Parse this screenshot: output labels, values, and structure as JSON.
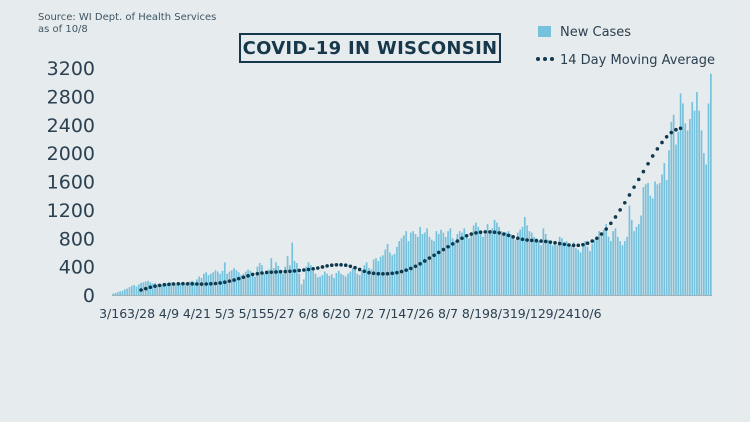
{
  "source": {
    "line1": "Source: WI Dept. of Health Services",
    "line2": "as of 10/8"
  },
  "title": "COVID-19 IN WISCONSIN",
  "colors": {
    "bar": "#76c1dc",
    "dots": "#0f3a4d",
    "text": "#2b4050",
    "background": "#e6ebee"
  },
  "chart_data": {
    "type": "bar",
    "title": "COVID-19 IN WISCONSIN",
    "ylim": [
      0,
      3200
    ],
    "yticks": [
      "3200",
      "2800",
      "2400",
      "2000",
      "1600",
      "1200",
      "800",
      "400",
      "0"
    ],
    "xticks": [
      "3/16",
      "3/28",
      "4/9",
      "4/21",
      "5/3",
      "5/15",
      "5/27",
      "6/8",
      "6/20",
      "7/2",
      "7/14",
      "7/26",
      "8/7",
      "8/19",
      "8/31",
      "9/12",
      "9/24",
      "10/6"
    ],
    "legend_position": "top-right",
    "series": [
      {
        "name": "New Cases",
        "type": "bar",
        "start_date": "3/16",
        "values": [
          20,
          30,
          40,
          50,
          60,
          80,
          90,
          110,
          130,
          140,
          120,
          150,
          170,
          180,
          190,
          200,
          180,
          160,
          170,
          150,
          160,
          140,
          150,
          160,
          170,
          180,
          160,
          140,
          150,
          170,
          150,
          160,
          170,
          190,
          200,
          180,
          220,
          260,
          240,
          300,
          320,
          280,
          300,
          320,
          350,
          330,
          300,
          340,
          460,
          300,
          330,
          350,
          380,
          350,
          320,
          280,
          300,
          330,
          360,
          340,
          300,
          260,
          400,
          450,
          420,
          300,
          320,
          360,
          520,
          380,
          460,
          410,
          330,
          300,
          400,
          550,
          420,
          740,
          480,
          450,
          300,
          150,
          220,
          400,
          460,
          420,
          380,
          300,
          250,
          260,
          280,
          330,
          300,
          270,
          290,
          240,
          310,
          340,
          300,
          280,
          260,
          300,
          330,
          380,
          360,
          300,
          280,
          350,
          420,
          460,
          380,
          360,
          500,
          520,
          480,
          540,
          560,
          640,
          720,
          600,
          560,
          580,
          680,
          760,
          800,
          840,
          900,
          760,
          880,
          900,
          860,
          820,
          960,
          860,
          880,
          940,
          820,
          780,
          760,
          900,
          860,
          920,
          880,
          820,
          900,
          940,
          800,
          760,
          860,
          900,
          880,
          940,
          860,
          800,
          840,
          980,
          1020,
          960,
          900,
          820,
          860,
          1000,
          880,
          940,
          1060,
          1020,
          960,
          900,
          860,
          880,
          900,
          860,
          820,
          780,
          880,
          920,
          960,
          1100,
          980,
          900,
          880,
          820,
          800,
          760,
          700,
          940,
          860,
          780,
          740,
          700,
          760,
          700,
          820,
          800,
          720,
          760,
          680,
          700,
          740,
          660,
          640,
          600,
          720,
          760,
          680,
          620,
          720,
          780,
          820,
          900,
          860,
          920,
          1000,
          820,
          760,
          900,
          940,
          820,
          760,
          700,
          760,
          820,
          1260,
          1060,
          900,
          960,
          1000,
          1120,
          1520,
          1560,
          1580,
          1400,
          1360,
          1600,
          1560,
          1580,
          1700,
          1860,
          1620,
          2040,
          2440,
          2540,
          2120,
          2300,
          2840,
          2700,
          2420,
          2320,
          2480,
          2720,
          2600,
          2860,
          2600,
          2320,
          2000,
          1840,
          2700,
          3120
        ]
      },
      {
        "name": "14 Day Moving Average",
        "type": "dotted-line",
        "start_date": "3/28",
        "values": [
          70,
          90,
          110,
          125,
          135,
          145,
          150,
          155,
          158,
          160,
          158,
          157,
          155,
          154,
          155,
          158,
          162,
          170,
          180,
          195,
          210,
          230,
          250,
          270,
          290,
          300,
          310,
          318,
          322,
          325,
          328,
          330,
          335,
          340,
          346,
          352,
          360,
          370,
          380,
          395,
          410,
          420,
          425,
          425,
          420,
          405,
          385,
          360,
          335,
          315,
          305,
          300,
          298,
          300,
          305,
          315,
          330,
          350,
          375,
          405,
          440,
          480,
          520,
          560,
          600,
          640,
          680,
          720,
          760,
          800,
          835,
          860,
          875,
          885,
          890,
          890,
          885,
          875,
          860,
          840,
          820,
          800,
          785,
          775,
          770,
          765,
          760,
          755,
          745,
          735,
          725,
          715,
          705,
          700,
          700,
          710,
          730,
          760,
          800,
          860,
          930,
          1010,
          1100,
          1200,
          1300,
          1410,
          1520,
          1630,
          1740,
          1850,
          1960,
          2060,
          2150,
          2230,
          2290,
          2330,
          2350
        ]
      }
    ]
  }
}
